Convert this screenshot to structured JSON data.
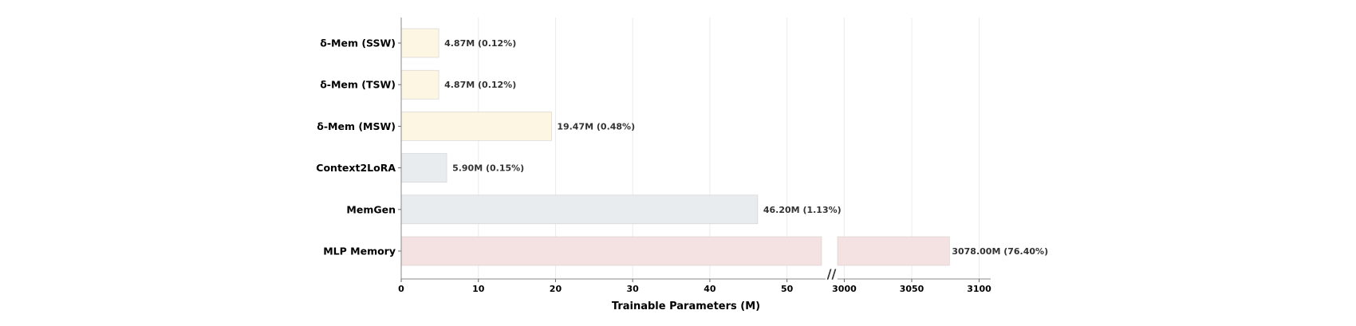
{
  "chart_data": {
    "type": "bar",
    "orientation": "horizontal",
    "xlabel": "Trainable Parameters (M)",
    "categories": [
      "δ-Mem (SSW)",
      "δ-Mem (TSW)",
      "δ-Mem (MSW)",
      "Context2LoRA",
      "MemGen",
      "MLP Memory"
    ],
    "values": [
      4.87,
      4.87,
      19.47,
      5.9,
      46.2,
      3078.0
    ],
    "value_labels": [
      "4.87M (0.12%)",
      "4.87M (0.12%)",
      "19.47M (0.48%)",
      "5.90M (0.15%)",
      "46.20M (1.13%)",
      "3078.00M (76.40%)"
    ],
    "bar_colors": [
      "#fdf6e3",
      "#fdf6e3",
      "#fdf6e3",
      "#e8ecef",
      "#e8ecef",
      "#f4e2e2"
    ],
    "axis_break": {
      "left_range": [
        0,
        55
      ],
      "right_range": [
        2995,
        3105
      ],
      "marker": "//"
    },
    "left_ticks": [
      0,
      10,
      20,
      30,
      40,
      50
    ],
    "right_ticks": [
      3000,
      3050,
      3100
    ],
    "grid": "vertical"
  }
}
